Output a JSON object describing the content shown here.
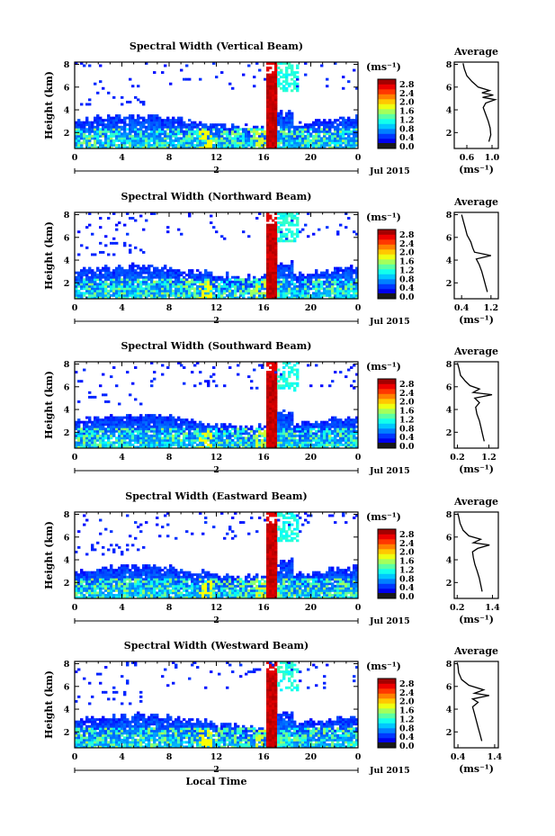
{
  "chart_data": [
    {
      "type": "heatmap",
      "title": "Spectral Width (Vertical Beam)",
      "ylabel": "Height (km)",
      "xticks": [
        "0",
        "4",
        "8",
        "12",
        "16",
        "20",
        "0"
      ],
      "yticks": [
        "2",
        "4",
        "6",
        "8"
      ],
      "date_marker": "2",
      "date_label": "Jul 2015",
      "ylim": [
        0.6,
        8.2
      ],
      "xlim": [
        0,
        24
      ],
      "colorbar": {
        "unit": "(ms⁻¹)",
        "ticks": [
          "2.8",
          "2.4",
          "2.0",
          "1.6",
          "1.2",
          "0.8",
          "0.4",
          "0.0"
        ]
      },
      "average": {
        "title": "Average",
        "xticks": [
          "0.6",
          "1.0"
        ],
        "xlim": [
          0.4,
          1.1
        ],
        "yticks": [
          "2",
          "4",
          "6",
          "8"
        ],
        "xlabel": "(ms⁻¹)",
        "profile": [
          [
            0.95,
            1.2
          ],
          [
            0.98,
            1.8
          ],
          [
            0.97,
            2.4
          ],
          [
            0.94,
            3.0
          ],
          [
            0.9,
            3.6
          ],
          [
            0.86,
            4.2
          ],
          [
            0.9,
            4.6
          ],
          [
            1.05,
            4.9
          ],
          [
            0.85,
            5.1
          ],
          [
            1.02,
            5.3
          ],
          [
            0.84,
            5.5
          ],
          [
            0.96,
            5.7
          ],
          [
            0.78,
            6.0
          ],
          [
            0.68,
            6.5
          ],
          [
            0.6,
            7.0
          ],
          [
            0.56,
            7.6
          ],
          [
            0.54,
            8.1
          ]
        ]
      }
    },
    {
      "type": "heatmap",
      "title": "Spectral Width (Northward Beam)",
      "ylabel": "Height (km)",
      "xticks": [
        "0",
        "4",
        "8",
        "12",
        "16",
        "20",
        "0"
      ],
      "yticks": [
        "2",
        "4",
        "6",
        "8"
      ],
      "date_marker": "2",
      "date_label": "Jul 2015",
      "ylim": [
        0.6,
        8.2
      ],
      "xlim": [
        0,
        24
      ],
      "colorbar": {
        "unit": "(ms⁻¹)",
        "ticks": [
          "2.8",
          "2.4",
          "2.0",
          "1.6",
          "1.2",
          "0.8",
          "0.4",
          "0.0"
        ]
      },
      "average": {
        "title": "Average",
        "xticks": [
          "0.4",
          "1.2"
        ],
        "xlim": [
          0.2,
          1.4
        ],
        "yticks": [
          "2",
          "4",
          "6",
          "8"
        ],
        "xlabel": "(ms⁻¹)",
        "profile": [
          [
            1.1,
            1.2
          ],
          [
            1.05,
            1.8
          ],
          [
            1.0,
            2.4
          ],
          [
            0.95,
            3.0
          ],
          [
            0.88,
            3.6
          ],
          [
            0.8,
            4.1
          ],
          [
            1.2,
            4.4
          ],
          [
            0.75,
            4.7
          ],
          [
            0.7,
            5.1
          ],
          [
            0.65,
            5.6
          ],
          [
            0.55,
            6.2
          ],
          [
            0.5,
            6.8
          ],
          [
            0.45,
            7.4
          ],
          [
            0.4,
            8.0
          ]
        ]
      }
    },
    {
      "type": "heatmap",
      "title": "Spectral Width (Southward Beam)",
      "ylabel": "Height (km)",
      "xticks": [
        "0",
        "4",
        "8",
        "12",
        "16",
        "20",
        "0"
      ],
      "yticks": [
        "2",
        "4",
        "6",
        "8"
      ],
      "date_marker": "2",
      "date_label": "Jul 2015",
      "ylim": [
        0.6,
        8.2
      ],
      "xlim": [
        0,
        24
      ],
      "colorbar": {
        "unit": "(ms⁻¹)",
        "ticks": [
          "2.8",
          "2.4",
          "2.0",
          "1.6",
          "1.2",
          "0.8",
          "0.4",
          "0.0"
        ]
      },
      "average": {
        "title": "Average",
        "xticks": [
          "0.2",
          "1.2"
        ],
        "xlim": [
          0.1,
          1.5
        ],
        "yticks": [
          "2",
          "4",
          "6",
          "8"
        ],
        "xlabel": "(ms⁻¹)",
        "profile": [
          [
            1.05,
            1.2
          ],
          [
            1.0,
            1.8
          ],
          [
            0.95,
            2.4
          ],
          [
            0.9,
            3.0
          ],
          [
            0.82,
            3.6
          ],
          [
            0.78,
            4.2
          ],
          [
            0.9,
            4.6
          ],
          [
            0.75,
            5.0
          ],
          [
            1.3,
            5.3
          ],
          [
            0.7,
            5.5
          ],
          [
            0.9,
            5.8
          ],
          [
            0.6,
            6.1
          ],
          [
            0.45,
            6.5
          ],
          [
            0.3,
            7.0
          ],
          [
            0.25,
            7.6
          ],
          [
            0.2,
            8.1
          ]
        ]
      }
    },
    {
      "type": "heatmap",
      "title": "Spectral Width (Eastward Beam)",
      "ylabel": "Height (km)",
      "xticks": [
        "0",
        "4",
        "8",
        "12",
        "16",
        "20",
        "0"
      ],
      "yticks": [
        "2",
        "4",
        "6",
        "8"
      ],
      "date_marker": "2",
      "date_label": "Jul 2015",
      "ylim": [
        0.6,
        8.2
      ],
      "xlim": [
        0,
        24
      ],
      "colorbar": {
        "unit": "(ms⁻¹)",
        "ticks": [
          "2.8",
          "2.4",
          "2.0",
          "1.6",
          "1.2",
          "0.8",
          "0.4",
          "0.0"
        ]
      },
      "average": {
        "title": "Average",
        "xticks": [
          "0.2",
          "1.4"
        ],
        "xlim": [
          0.1,
          1.6
        ],
        "yticks": [
          "2",
          "4",
          "6",
          "8"
        ],
        "xlabel": "(ms⁻¹)",
        "profile": [
          [
            1.05,
            1.2
          ],
          [
            1.0,
            1.8
          ],
          [
            0.95,
            2.4
          ],
          [
            0.88,
            3.0
          ],
          [
            0.8,
            3.6
          ],
          [
            0.75,
            4.2
          ],
          [
            0.72,
            4.7
          ],
          [
            0.9,
            5.0
          ],
          [
            1.3,
            5.3
          ],
          [
            0.75,
            5.5
          ],
          [
            1.0,
            5.8
          ],
          [
            0.6,
            6.1
          ],
          [
            0.4,
            6.6
          ],
          [
            0.3,
            7.2
          ],
          [
            0.25,
            7.8
          ],
          [
            0.22,
            8.1
          ]
        ]
      }
    },
    {
      "type": "heatmap",
      "title": "Spectral Width (Westward Beam)",
      "ylabel": "Height (km)",
      "xlabel": "Local Time",
      "xticks": [
        "0",
        "4",
        "8",
        "12",
        "16",
        "20",
        "0"
      ],
      "yticks": [
        "2",
        "4",
        "6",
        "8"
      ],
      "date_marker": "2",
      "date_label": "Jul 2015",
      "ylim": [
        0.6,
        8.2
      ],
      "xlim": [
        0,
        24
      ],
      "colorbar": {
        "unit": "(ms⁻¹)",
        "ticks": [
          "2.8",
          "2.4",
          "2.0",
          "1.6",
          "1.2",
          "0.8",
          "0.4",
          "0.0"
        ]
      },
      "average": {
        "title": "Average",
        "xticks": [
          "0.4",
          "1.4"
        ],
        "xlim": [
          0.3,
          1.5
        ],
        "yticks": [
          "2",
          "4",
          "6",
          "8"
        ],
        "xlabel": "(ms⁻¹)",
        "profile": [
          [
            1.05,
            1.2
          ],
          [
            1.0,
            1.8
          ],
          [
            0.95,
            2.4
          ],
          [
            0.9,
            3.0
          ],
          [
            0.85,
            3.6
          ],
          [
            0.8,
            4.2
          ],
          [
            0.95,
            4.6
          ],
          [
            0.8,
            4.9
          ],
          [
            1.25,
            5.2
          ],
          [
            0.85,
            5.4
          ],
          [
            1.1,
            5.7
          ],
          [
            0.7,
            6.1
          ],
          [
            0.5,
            6.6
          ],
          [
            0.42,
            7.2
          ],
          [
            0.4,
            7.8
          ],
          [
            0.38,
            8.1
          ]
        ]
      }
    }
  ]
}
